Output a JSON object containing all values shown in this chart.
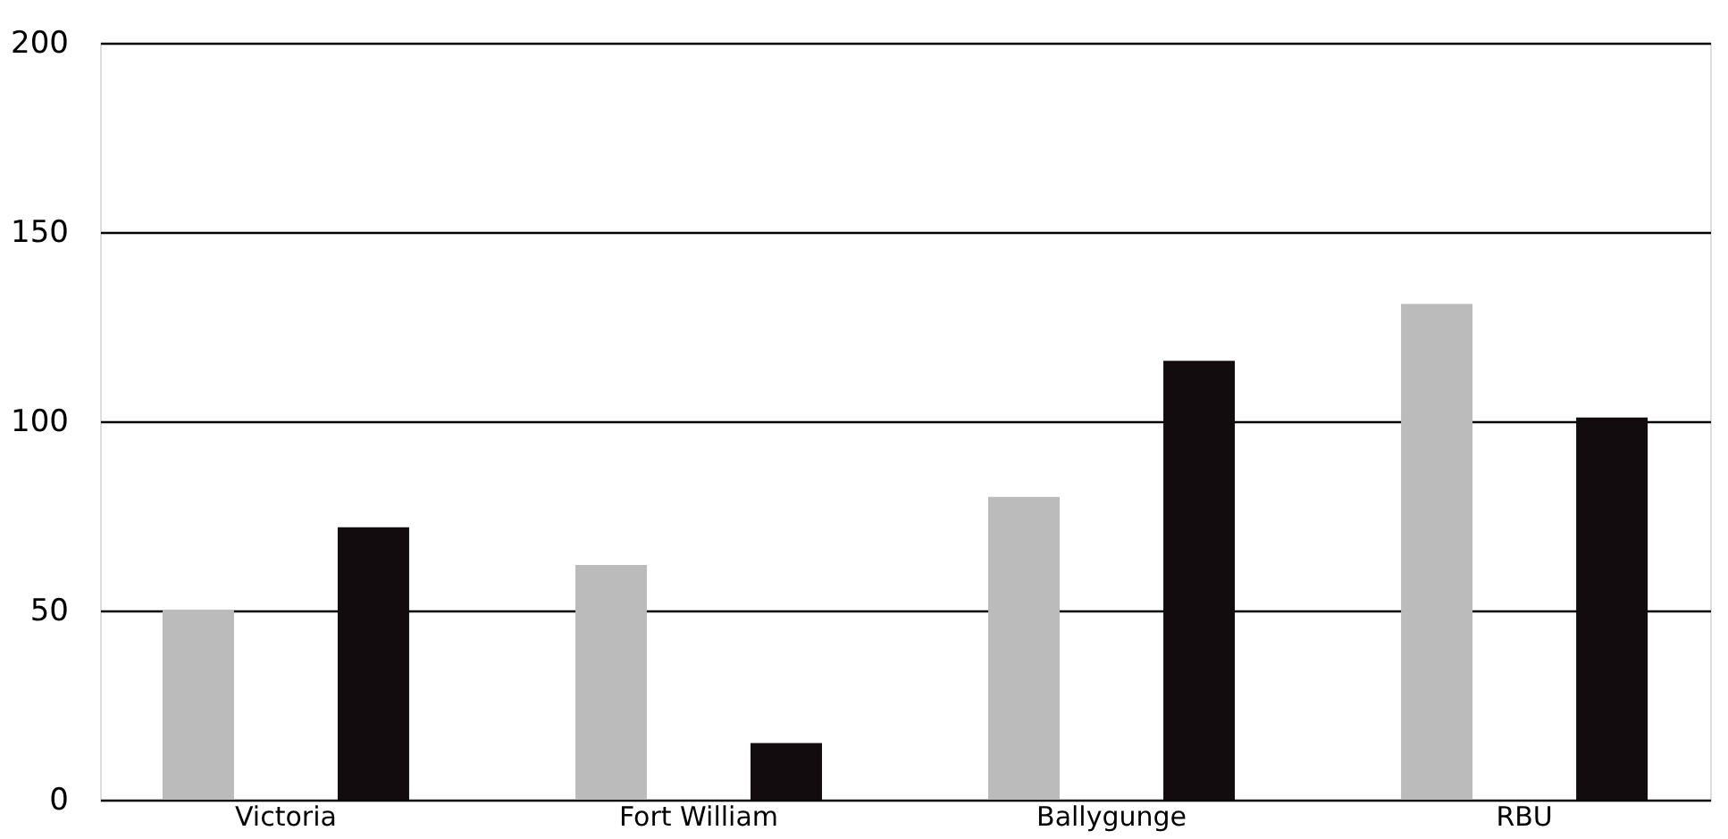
{
  "chart_data": {
    "type": "bar",
    "categories": [
      "Victoria",
      "Fort William",
      "Ballygunge",
      "RBU"
    ],
    "series": [
      {
        "color": "#bbbbbb",
        "values": [
          50,
          62,
          80,
          131
        ]
      },
      {
        "color": "#130c0e",
        "values": [
          72,
          15,
          116,
          101
        ]
      }
    ],
    "ylim": [
      0,
      200
    ],
    "yticks": [
      0,
      50,
      100,
      150,
      200
    ],
    "grid": "y",
    "legend": false
  }
}
